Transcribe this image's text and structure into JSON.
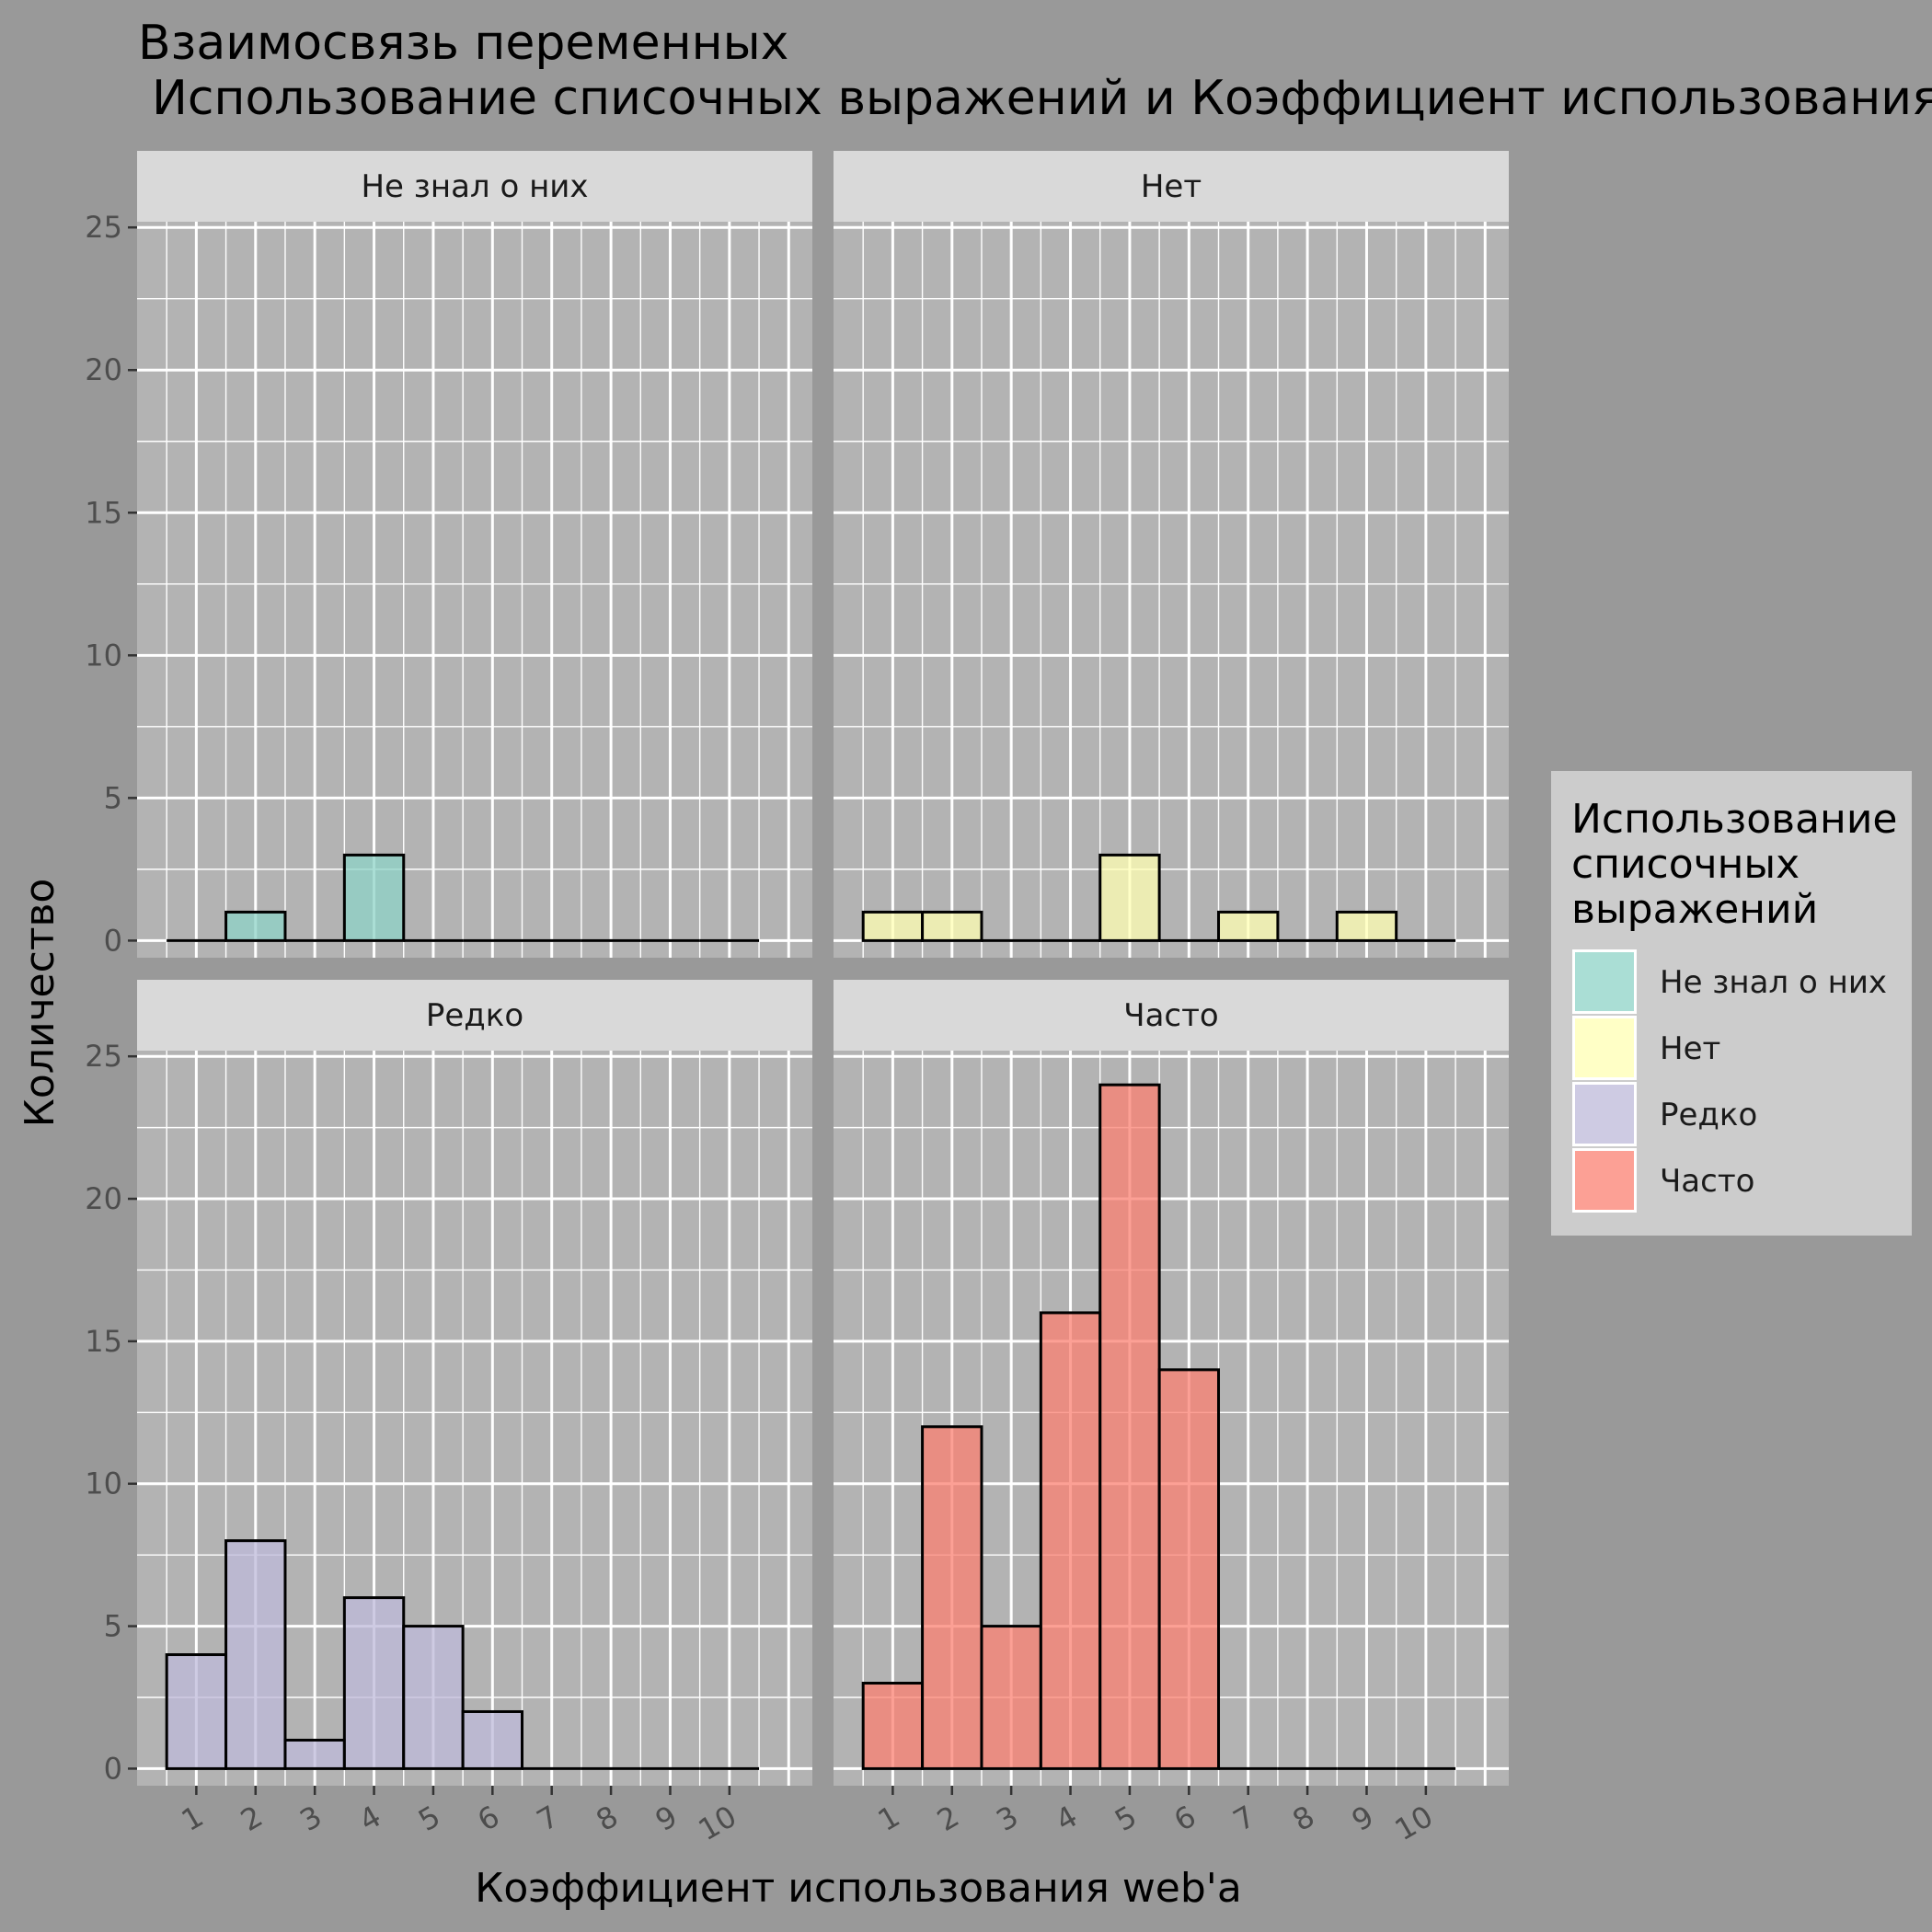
{
  "chart_data": {
    "type": "bar",
    "title_line1": "Взаимосвязь переменных",
    "title_line2": "Использование списочных выражений и Коэффициент использования web'a",
    "xlabel": "Коэффициент использования web'a",
    "ylabel": "Количество",
    "x_ticks": [
      "1",
      "2",
      "3",
      "4",
      "5",
      "6",
      "7",
      "8",
      "9",
      "10"
    ],
    "y_ticks": [
      "0",
      "5",
      "10",
      "15",
      "20",
      "25"
    ],
    "ylim": [
      -0.6,
      25.2
    ],
    "grid": true,
    "legend_position": "right",
    "legend_title": [
      "Использование",
      "списочных",
      "выражений"
    ],
    "panels": [
      {
        "name": "Не знал о них",
        "color": "#8dd3c7",
        "bins": [
          [
            0.5,
            1.5,
            0
          ],
          [
            1.5,
            2.5,
            1
          ],
          [
            2.5,
            3.5,
            0
          ],
          [
            3.5,
            4.5,
            3
          ],
          [
            4.5,
            5.5,
            0
          ],
          [
            5.5,
            6.5,
            0
          ],
          [
            6.5,
            7.5,
            0
          ],
          [
            7.5,
            8.5,
            0
          ],
          [
            8.5,
            9.5,
            0
          ],
          [
            9.5,
            10.5,
            0
          ]
        ]
      },
      {
        "name": "Нет",
        "color": "#ffffb3",
        "bins": [
          [
            0.5,
            1.5,
            1
          ],
          [
            1.5,
            2.5,
            1
          ],
          [
            2.5,
            3.5,
            0
          ],
          [
            3.5,
            4.5,
            0
          ],
          [
            4.5,
            5.5,
            3
          ],
          [
            5.5,
            6.5,
            0
          ],
          [
            6.5,
            7.5,
            1
          ],
          [
            7.5,
            8.5,
            0
          ],
          [
            8.5,
            9.5,
            1
          ],
          [
            9.5,
            10.5,
            0
          ]
        ]
      },
      {
        "name": "Редко",
        "color": "#bebada",
        "bins": [
          [
            0.5,
            1.5,
            4
          ],
          [
            1.5,
            2.5,
            8
          ],
          [
            2.5,
            3.5,
            1
          ],
          [
            3.5,
            4.5,
            6
          ],
          [
            4.5,
            5.5,
            5
          ],
          [
            5.5,
            6.5,
            2
          ],
          [
            6.5,
            7.5,
            0
          ],
          [
            7.5,
            8.5,
            0
          ],
          [
            8.5,
            9.5,
            0
          ],
          [
            9.5,
            10.5,
            0
          ]
        ]
      },
      {
        "name": "Часто",
        "color": "#fb8072",
        "bins": [
          [
            0.5,
            1.5,
            3
          ],
          [
            1.5,
            2.5,
            12
          ],
          [
            2.5,
            3.5,
            5
          ],
          [
            3.5,
            4.5,
            16
          ],
          [
            4.5,
            5.5,
            24
          ],
          [
            5.5,
            6.5,
            14
          ],
          [
            6.5,
            7.5,
            0
          ],
          [
            7.5,
            8.5,
            0
          ],
          [
            8.5,
            9.5,
            0
          ],
          [
            9.5,
            10.5,
            0
          ]
        ]
      }
    ]
  }
}
